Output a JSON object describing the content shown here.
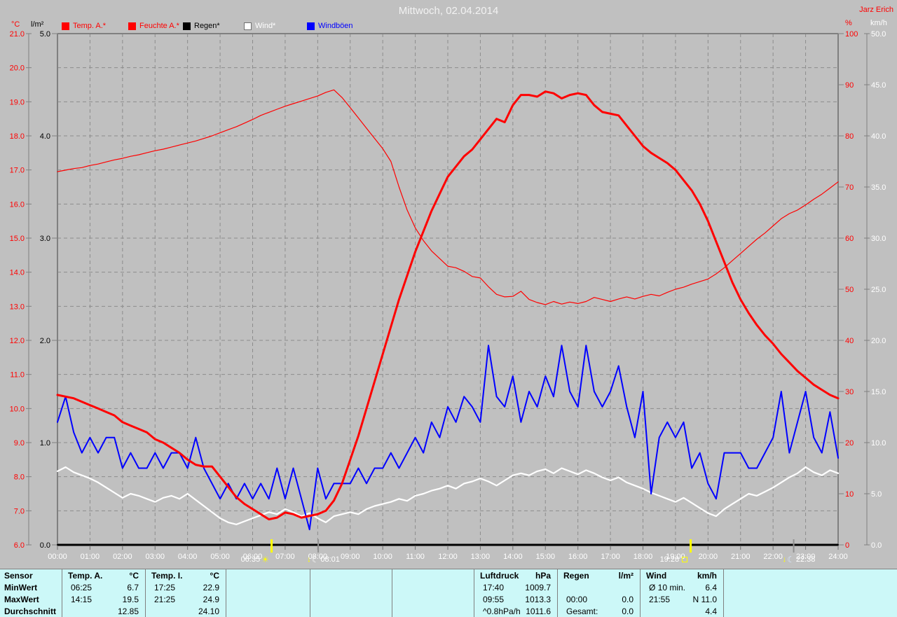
{
  "header": {
    "title": "Mittwoch, 02.04.2014",
    "station": "Jarz Erich"
  },
  "units": {
    "left_temp": "°C",
    "left_rain": "l/m²",
    "right_hum": "%",
    "right_wind": "km/h"
  },
  "legend": [
    {
      "label": "Temp. A.*",
      "swatch": "#ff0000",
      "text": "#ff0000"
    },
    {
      "label": "Feuchte A.*",
      "swatch": "#ff0000",
      "text": "#ff0000"
    },
    {
      "label": "Regen*",
      "swatch": "#000000",
      "text": "#000000"
    },
    {
      "label": "Wind*",
      "swatch": "#ffffff",
      "text": "#ffffff"
    },
    {
      "label": "Windböen",
      "swatch": "#0000ff",
      "text": "#0000ff"
    }
  ],
  "axes": {
    "left_temp": {
      "unit": "°C",
      "color": "#ff0000",
      "min": 6,
      "max": 21,
      "ticks": [
        "21.0",
        "20.0",
        "19.0",
        "18.0",
        "17.0",
        "16.0",
        "15.0",
        "14.0",
        "13.0",
        "12.0",
        "11.0",
        "10.0",
        "9.0",
        "8.0",
        "7.0",
        "6.0"
      ]
    },
    "left_rain": {
      "unit": "l/m²",
      "color": "#000000",
      "min": 0,
      "max": 5,
      "ticks": [
        "5.0",
        "4.0",
        "3.0",
        "2.0",
        "1.0",
        "0.0"
      ]
    },
    "right_hum": {
      "unit": "%",
      "color": "#ff0000",
      "min": 0,
      "max": 100,
      "ticks": [
        "100",
        "90",
        "80",
        "70",
        "60",
        "50",
        "40",
        "30",
        "20",
        "10",
        "0"
      ]
    },
    "right_wind": {
      "unit": "km/h",
      "color": "#ffffff",
      "min": 0,
      "max": 50,
      "ticks": [
        "50.0",
        "45.0",
        "40.0",
        "35.0",
        "30.0",
        "25.0",
        "20.0",
        "15.0",
        "10.0",
        "5.0",
        "0.0"
      ]
    },
    "x": {
      "labels": [
        "00:00",
        "01:00",
        "02:00",
        "03:00",
        "04:00",
        "05:00",
        "06:00",
        "07:00",
        "08:00",
        "09:00",
        "10:00",
        "11:00",
        "12:00",
        "13:00",
        "14:00",
        "15:00",
        "16:00",
        "17:00",
        "18:00",
        "19:00",
        "20:00",
        "21:00",
        "22:00",
        "23:00",
        "24:00"
      ]
    }
  },
  "markers": {
    "sunrise": {
      "time": "06:35"
    },
    "moonset": {
      "time": "08:01"
    },
    "sunset": {
      "time": "19:28"
    },
    "moonrise": {
      "time": "22:38"
    }
  },
  "chart_data": {
    "type": "line",
    "title": "Mittwoch, 02.04.2014",
    "interval_minutes": 15,
    "x_start": "00:00",
    "x_end": "24:00",
    "grid": true,
    "series": [
      {
        "name": "Regen",
        "unit": "l/m²",
        "axis": "left_rain",
        "color": "#000000",
        "width": 2,
        "x_hours": [
          0,
          24
        ],
        "values": [
          0,
          0
        ]
      },
      {
        "name": "Feuchte A.",
        "unit": "%",
        "axis": "right_hum",
        "color": "#ff0000",
        "width": 1.2,
        "values": [
          73,
          73.3,
          73.6,
          73.8,
          74.2,
          74.5,
          74.9,
          75.3,
          75.6,
          76,
          76.3,
          76.7,
          77.1,
          77.4,
          77.8,
          78.2,
          78.6,
          79,
          79.5,
          80,
          80.6,
          81.2,
          81.8,
          82.5,
          83.2,
          84,
          84.6,
          85.2,
          85.8,
          86.3,
          86.8,
          87.3,
          87.8,
          88.5,
          89,
          87.5,
          85.5,
          83.5,
          81.5,
          79.5,
          77.5,
          75,
          70,
          65.5,
          62,
          59.5,
          57.5,
          56,
          54.5,
          54.2,
          53.5,
          52.5,
          52.2,
          50.5,
          49,
          48.5,
          48.6,
          49.6,
          48,
          47.4,
          47,
          47.6,
          47.1,
          47.5,
          47.2,
          47.6,
          48.4,
          48,
          47.6,
          48.1,
          48.5,
          48.1,
          48.6,
          49,
          48.7,
          49.4,
          50,
          50.4,
          51,
          51.5,
          52,
          53,
          54.2,
          55.6,
          57,
          58.4,
          59.8,
          61,
          62.4,
          63.8,
          64.8,
          65.5,
          66.5,
          67.6,
          68.6,
          69.8,
          71
        ]
      },
      {
        "name": "Wind",
        "unit": "km/h",
        "axis": "right_wind",
        "color": "#ffffff",
        "width": 2.2,
        "values": [
          7.2,
          7.6,
          7.1,
          6.8,
          6.5,
          6.1,
          5.6,
          5.1,
          4.6,
          5,
          4.8,
          4.5,
          4.2,
          4.6,
          4.8,
          4.5,
          5,
          4.4,
          3.8,
          3.2,
          2.6,
          2.2,
          2,
          2.3,
          2.6,
          2.9,
          3.2,
          3,
          3.5,
          3.2,
          2.8,
          3.1,
          2.6,
          2.2,
          2.8,
          3,
          3.2,
          3,
          3.5,
          3.8,
          4,
          4.2,
          4.5,
          4.3,
          4.8,
          5,
          5.3,
          5.5,
          5.8,
          5.5,
          6,
          6.2,
          6.5,
          6.2,
          5.8,
          6.3,
          6.8,
          7,
          6.8,
          7.2,
          7.4,
          7,
          7.5,
          7.2,
          6.9,
          7.3,
          7,
          6.6,
          6.3,
          6.6,
          6.1,
          5.8,
          5.5,
          5.1,
          4.8,
          4.5,
          4.2,
          4.6,
          4.1,
          3.6,
          3.1,
          2.8,
          3.5,
          4,
          4.5,
          5,
          4.8,
          5.2,
          5.6,
          6.1,
          6.6,
          7,
          7.6,
          7.1,
          6.8,
          7.3,
          7
        ]
      },
      {
        "name": "Windböen",
        "unit": "km/h",
        "axis": "right_wind",
        "color": "#0000ff",
        "width": 2,
        "values": [
          12,
          14.5,
          11,
          9,
          10.5,
          9,
          10.5,
          10.5,
          7.5,
          9,
          7.5,
          7.5,
          9,
          7.5,
          9,
          9,
          7.5,
          10.5,
          7.5,
          6,
          4.5,
          6,
          4.5,
          6,
          4.5,
          6,
          4.5,
          7.5,
          4.5,
          7.5,
          4.5,
          1.5,
          7.5,
          4.5,
          6,
          6,
          6,
          7.5,
          6,
          7.5,
          7.5,
          9,
          7.5,
          9,
          10.5,
          9,
          12,
          10.5,
          13.5,
          12,
          14.5,
          13.5,
          12,
          19.5,
          14.5,
          13.5,
          16.5,
          12,
          15,
          13.5,
          16.5,
          14.5,
          19.5,
          15,
          13.5,
          19.5,
          15,
          13.5,
          15,
          17.5,
          13.5,
          10.5,
          15,
          5,
          10.5,
          12,
          10.5,
          12,
          7.5,
          9,
          6,
          4.5,
          9,
          9,
          9,
          7.5,
          7.5,
          9,
          10.5,
          15,
          9,
          12,
          15,
          10.5,
          9,
          13,
          8.5
        ]
      },
      {
        "name": "Temp. A.",
        "unit": "°C",
        "axis": "left_temp",
        "color": "#ff0000",
        "width": 3,
        "values": [
          10.4,
          10.35,
          10.3,
          10.2,
          10.1,
          10,
          9.9,
          9.8,
          9.6,
          9.5,
          9.4,
          9.3,
          9.1,
          9,
          8.85,
          8.7,
          8.5,
          8.35,
          8.3,
          8.3,
          8,
          7.7,
          7.4,
          7.2,
          7.05,
          6.9,
          6.75,
          6.8,
          6.95,
          6.9,
          6.8,
          6.85,
          6.9,
          7,
          7.3,
          7.8,
          8.5,
          9.2,
          10,
          10.8,
          11.6,
          12.4,
          13.2,
          13.9,
          14.6,
          15.2,
          15.8,
          16.3,
          16.8,
          17.1,
          17.4,
          17.6,
          17.9,
          18.2,
          18.5,
          18.4,
          18.9,
          19.2,
          19.2,
          19.15,
          19.3,
          19.25,
          19.1,
          19.2,
          19.25,
          19.2,
          18.9,
          18.7,
          18.65,
          18.6,
          18.3,
          18,
          17.7,
          17.5,
          17.35,
          17.2,
          17,
          16.7,
          16.4,
          16,
          15.5,
          14.9,
          14.3,
          13.7,
          13.2,
          12.8,
          12.45,
          12.15,
          11.9,
          11.6,
          11.35,
          11.1,
          10.9,
          10.7,
          10.55,
          10.4,
          10.3
        ]
      }
    ]
  },
  "table": {
    "row_labels": [
      "Sensor",
      "MinWert",
      "MaxWert",
      "Durchschnitt"
    ],
    "columns": [
      {
        "name": "Temp. A.",
        "unit": "°C",
        "min": {
          "time": "06:25",
          "value": "6.7"
        },
        "max": {
          "time": "14:15",
          "value": "19.5"
        },
        "avg": {
          "time": "",
          "value": "12.85"
        }
      },
      {
        "name": "Temp. I.",
        "unit": "°C",
        "min": {
          "time": "17:25",
          "value": "22.9"
        },
        "max": {
          "time": "21:25",
          "value": "24.9"
        },
        "avg": {
          "time": "",
          "value": "24.10"
        }
      },
      {
        "name": "Luftdruck",
        "unit": "hPa",
        "min": {
          "time": "17:40",
          "value": "1009.7"
        },
        "max": {
          "time": "09:55",
          "value": "1013.3"
        },
        "avg": {
          "time": "^0.8hPa/h",
          "value": "1011.6"
        }
      },
      {
        "name": "Regen",
        "unit": "l/m²",
        "min": {
          "time": "",
          "value": ""
        },
        "max": {
          "time": "00:00",
          "value": "0.0"
        },
        "avg": {
          "time": "Gesamt:",
          "value": "0.0"
        }
      },
      {
        "name": "Wind",
        "unit": "km/h",
        "min": {
          "time": "Ø 10 min.",
          "value": "6.4"
        },
        "max": {
          "time": "21:55",
          "value": "N 11.0"
        },
        "avg": {
          "time": "",
          "value": "4.4"
        }
      }
    ]
  },
  "colors": {
    "background": "#c0c0c0",
    "table_background": "#ccf8f8",
    "grid": "#8c8c8c",
    "border": "#808080",
    "bottom_axis": "#000000",
    "hour_label": "#ffffff",
    "title": "#f2f2f2",
    "sun_marker": "#ffff00",
    "moon_marker": "#909090"
  }
}
